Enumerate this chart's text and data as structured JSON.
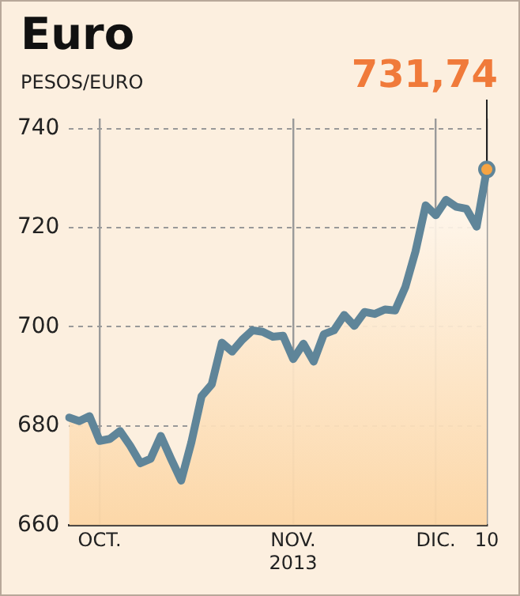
{
  "chart_data": {
    "type": "area",
    "title": "Euro",
    "ylabel": "PESOS/EURO",
    "categories": [
      null,
      null,
      null,
      "OCT.",
      null,
      null,
      null,
      null,
      null,
      null,
      null,
      null,
      null,
      null,
      null,
      null,
      null,
      null,
      null,
      null,
      null,
      null,
      "NOV.\n2013",
      null,
      null,
      null,
      null,
      null,
      null,
      null,
      null,
      null,
      null,
      null,
      null,
      null,
      "DIC.",
      null,
      null,
      null,
      null,
      "10"
    ],
    "series": [
      {
        "color": "#5f8599",
        "values": [
          681.7,
          681,
          682,
          677,
          677.4,
          679,
          676,
          672.5,
          673.4,
          678,
          673.4,
          669,
          676.7,
          686,
          688.4,
          696.8,
          695,
          697.4,
          699.3,
          699,
          698,
          698.2,
          693.5,
          696.6,
          693,
          698.5,
          699.3,
          702.4,
          700.2,
          703,
          702.6,
          703.5,
          703.3,
          708,
          715.2,
          724.5,
          722.5,
          725.6,
          724.2,
          723.8,
          720.2,
          731.74
        ]
      }
    ],
    "ylim": [
      660,
      742
    ],
    "yticks": [
      660,
      680,
      700,
      720,
      740
    ],
    "grid": true,
    "legend": false,
    "annotations": [
      {
        "text": "731,74",
        "x": "10",
        "y": 731.74
      }
    ]
  }
}
